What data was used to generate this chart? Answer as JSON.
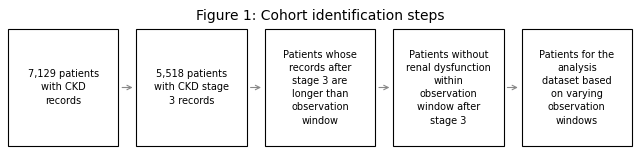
{
  "title": "Figure 1: Cohort identification steps",
  "title_fontsize": 10,
  "boxes": [
    "7,129 patients\nwith CKD\nrecords",
    "5,518 patients\nwith CKD stage\n3 records",
    "Patients whose\nrecords after\nstage 3 are\nlonger than\nobservation\nwindow",
    "Patients without\nrenal dysfunction\nwithin\nobservation\nwindow after\nstage 3",
    "Patients for the\nanalysis\ndataset based\non varying\nobservation\nwindows"
  ],
  "box_facecolor": "#ffffff",
  "box_edgecolor": "#000000",
  "text_color": "#000000",
  "text_fontsize": 7.0,
  "background_color": "#ffffff",
  "arrow_color": "#888888",
  "caption_color": "#000000"
}
